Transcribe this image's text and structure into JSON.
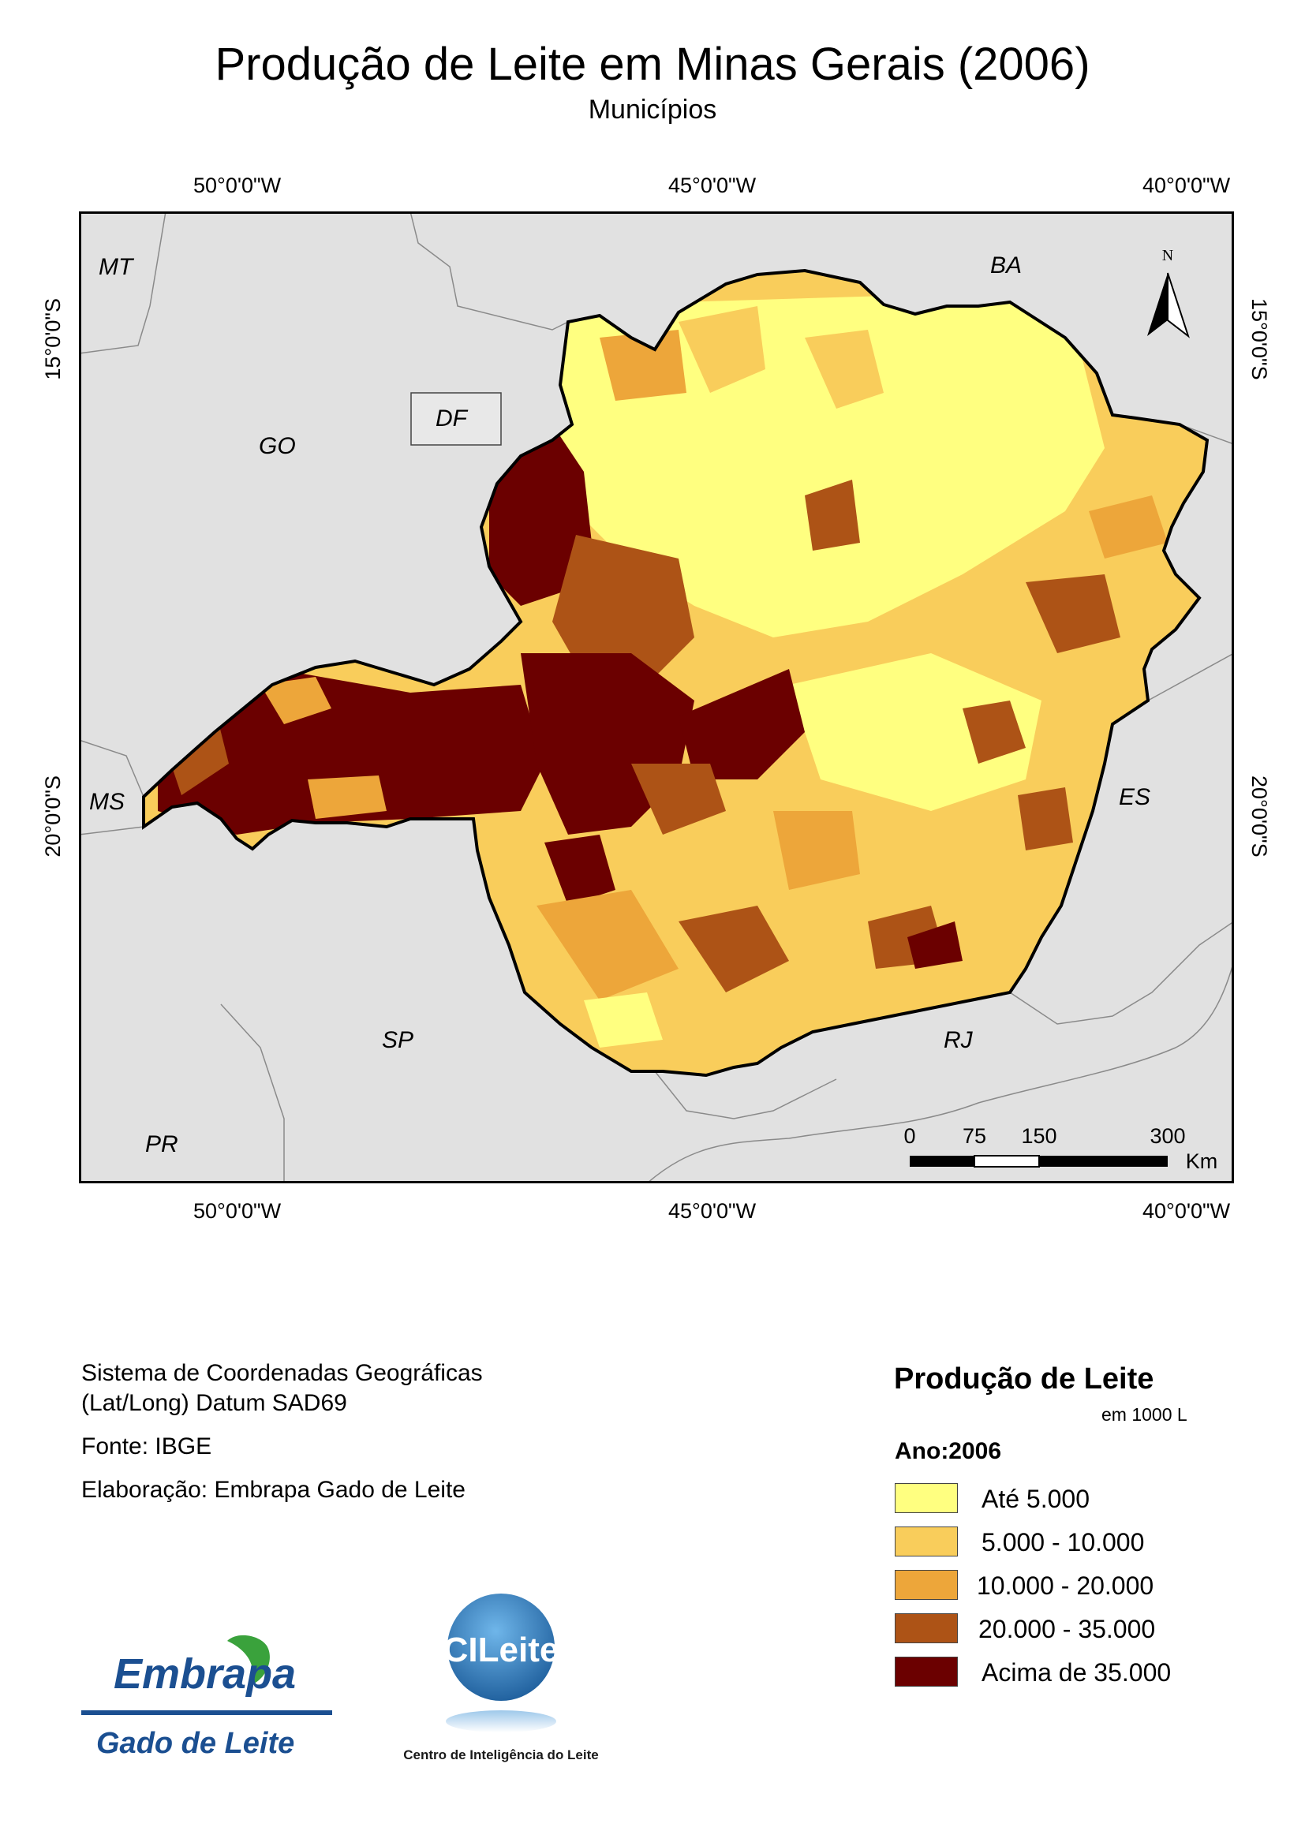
{
  "title": "Produção de Leite em Minas Gerais (2006)",
  "subtitle": "Municípios",
  "graticule": {
    "top": [
      "50°0'0\"W",
      "45°0'0\"W",
      "40°0'0\"W"
    ],
    "bottom": [
      "50°0'0\"W",
      "45°0'0\"W",
      "40°0'0\"W"
    ],
    "left": [
      "15°0'0\"S",
      "20°0'0\"S"
    ],
    "right": [
      "15°0'0\"S",
      "20°0'0\"S"
    ]
  },
  "states": {
    "mt": "MT",
    "go": "GO",
    "df": "DF",
    "ba": "BA",
    "ms": "MS",
    "es": "ES",
    "sp": "SP",
    "rj": "RJ",
    "pr": "PR"
  },
  "north_label": "N",
  "scalebar": {
    "ticks": [
      "0",
      "75",
      "150",
      "300"
    ],
    "unit": "Km"
  },
  "info": {
    "coords_line1": "Sistema de Coordenadas Geográficas",
    "coords_line2": "(Lat/Long) Datum SAD69",
    "source": "Fonte: IBGE",
    "author": "Elaboração: Embrapa Gado de Leite"
  },
  "legend": {
    "title": "Produção de Leite",
    "unit": "em 1000 L",
    "year": "Ano:2006",
    "classes": [
      {
        "label": "Até 5.000",
        "color": "#ffff80"
      },
      {
        "label": "5.000 - 10.000",
        "color": "#f9cd5b"
      },
      {
        "label": "10.000 - 20.000",
        "color": "#eda63a"
      },
      {
        "label": "20.000 - 35.000",
        "color": "#ad5316"
      },
      {
        "label": "Acima de 35.000",
        "color": "#6b0000"
      }
    ]
  },
  "logos": {
    "embrapa_name": "Embrapa",
    "embrapa_sub": "Gado de Leite",
    "cileite_name": "CILeite",
    "cileite_sub": "Centro de Inteligência do Leite"
  }
}
